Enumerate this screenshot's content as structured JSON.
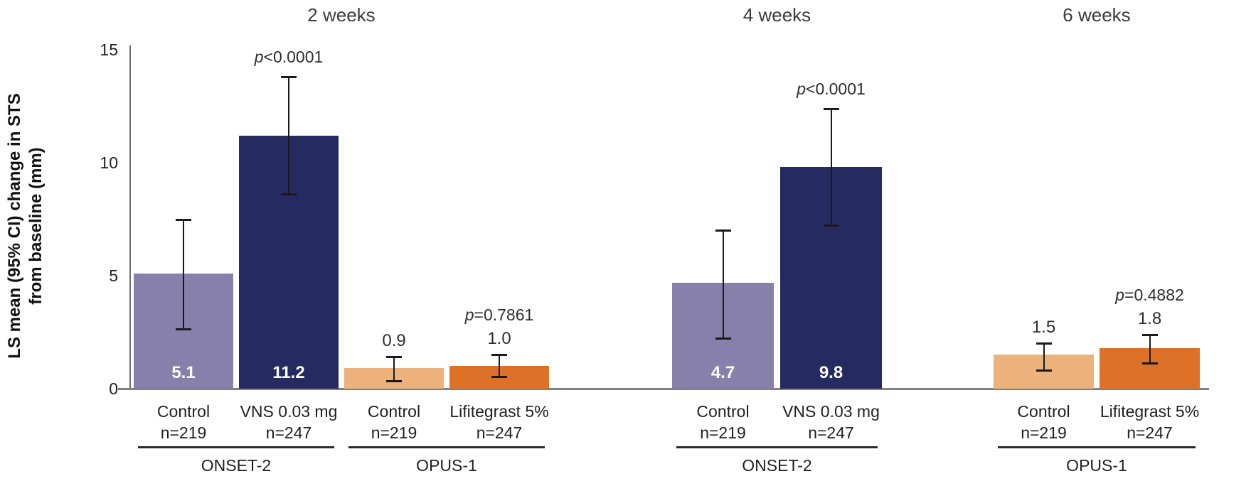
{
  "chart_data": {
    "type": "bar",
    "title": "",
    "ylabel": "LS mean (95% CI) change in STS from baseline (mm)",
    "ylabel_line1": "LS mean (95% CI) change in STS",
    "ylabel_line2": "from baseline (mm)",
    "ylim": [
      0,
      15
    ],
    "yticks": [
      0,
      5,
      10,
      15
    ],
    "grid": false,
    "legend_position": "none",
    "colors": {
      "control_purple": "#8780AB",
      "vns_navy": "#252A61",
      "control_orange": "#EDB27C",
      "lifitegrast_orange": "#DD7128",
      "baseline_gray": "#808080",
      "axis_gray": "#6E6E6E",
      "error_bar_black": "#1A1A1A",
      "text_dark": "#2E2E2E"
    },
    "time_groups": [
      {
        "label": "2 weeks",
        "studies": [
          {
            "name": "ONSET-2",
            "bars": [
              {
                "arm": "Control",
                "n_label": "n=219",
                "value": 5.1,
                "value_label": "5.1",
                "ci_low": 2.6,
                "ci_high": 7.5,
                "color": "control_purple",
                "label_inside": true,
                "p_label": ""
              },
              {
                "arm": "VNS 0.03 mg",
                "n_label": "n=247",
                "value": 11.2,
                "value_label": "11.2",
                "ci_low": 8.6,
                "ci_high": 13.8,
                "color": "vns_navy",
                "label_inside": true,
                "p_label": "p<0.0001"
              }
            ]
          },
          {
            "name": "OPUS-1",
            "bars": [
              {
                "arm": "Control",
                "n_label": "n=219",
                "value": 0.9,
                "value_label": "0.9",
                "ci_low": 0.3,
                "ci_high": 1.4,
                "color": "control_orange",
                "label_inside": false,
                "p_label": ""
              },
              {
                "arm": "Lifitegrast 5%",
                "n_label": "n=247",
                "value": 1.0,
                "value_label": "1.0",
                "ci_low": 0.5,
                "ci_high": 1.5,
                "color": "lifitegrast_orange",
                "label_inside": false,
                "p_label": "p=0.7861"
              }
            ]
          }
        ]
      },
      {
        "label": "4 weeks",
        "studies": [
          {
            "name": "ONSET-2",
            "bars": [
              {
                "arm": "Control",
                "n_label": "n=219",
                "value": 4.7,
                "value_label": "4.7",
                "ci_low": 2.2,
                "ci_high": 7.0,
                "color": "control_purple",
                "label_inside": true,
                "p_label": ""
              },
              {
                "arm": "VNS 0.03 mg",
                "n_label": "n=247",
                "value": 9.8,
                "value_label": "9.8",
                "ci_low": 7.2,
                "ci_high": 12.4,
                "color": "vns_navy",
                "label_inside": true,
                "p_label": "p<0.0001"
              }
            ]
          }
        ]
      },
      {
        "label": "6 weeks",
        "studies": [
          {
            "name": "OPUS-1",
            "bars": [
              {
                "arm": "Control",
                "n_label": "n=219",
                "value": 1.5,
                "value_label": "1.5",
                "ci_low": 0.8,
                "ci_high": 2.0,
                "color": "control_orange",
                "label_inside": false,
                "p_label": ""
              },
              {
                "arm": "Lifitegrast 5%",
                "n_label": "n=247",
                "value": 1.8,
                "value_label": "1.8",
                "ci_low": 1.1,
                "ci_high": 2.4,
                "color": "lifitegrast_orange",
                "label_inside": false,
                "p_label": "p=0.4882"
              }
            ]
          }
        ]
      }
    ]
  }
}
